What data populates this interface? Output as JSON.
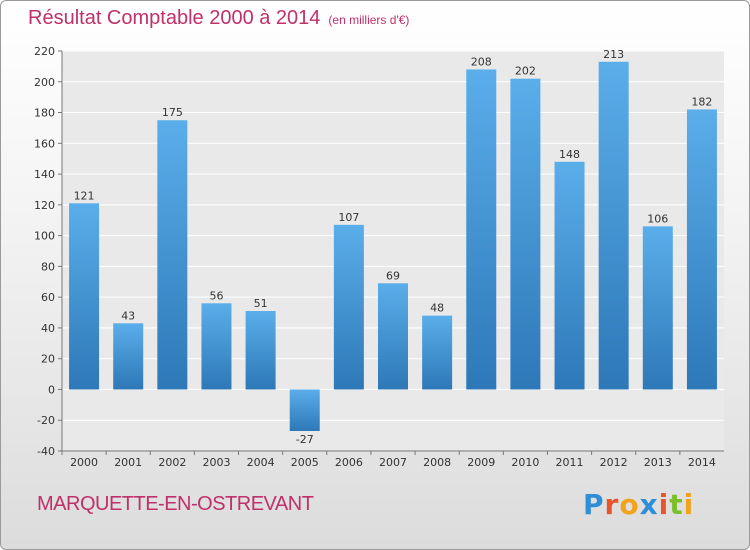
{
  "header": {
    "title": "Résultat Comptable 2000 à 2014",
    "subtitle": "(en milliers d'€)"
  },
  "footer": {
    "city": "MARQUETTE-EN-OSTREVANT",
    "logo": {
      "letters": [
        "P",
        "r",
        "o",
        "x",
        "i",
        "t",
        "i"
      ],
      "colors": [
        "#2e8fd8",
        "#e8552a",
        "#f2a31b",
        "#2e8fd8",
        "#e8552a",
        "#7bbf2a",
        "#f2a31b"
      ]
    }
  },
  "chart_data": {
    "type": "bar",
    "title": "Résultat Comptable 2000 à 2014",
    "subtitle": "(en milliers d'€)",
    "categories": [
      "2000",
      "2001",
      "2002",
      "2003",
      "2004",
      "2005",
      "2006",
      "2007",
      "2008",
      "2009",
      "2010",
      "2011",
      "2012",
      "2013",
      "2014"
    ],
    "values": [
      121,
      43,
      175,
      56,
      51,
      -27,
      107,
      69,
      48,
      208,
      202,
      148,
      213,
      106,
      182
    ],
    "ylim": [
      -40,
      220
    ],
    "yticks": [
      -40,
      -20,
      0,
      20,
      40,
      60,
      80,
      100,
      120,
      140,
      160,
      180,
      200,
      220
    ],
    "grid": true,
    "bar_color_top": "#5aaeea",
    "bar_color_bottom": "#2e78b8"
  }
}
